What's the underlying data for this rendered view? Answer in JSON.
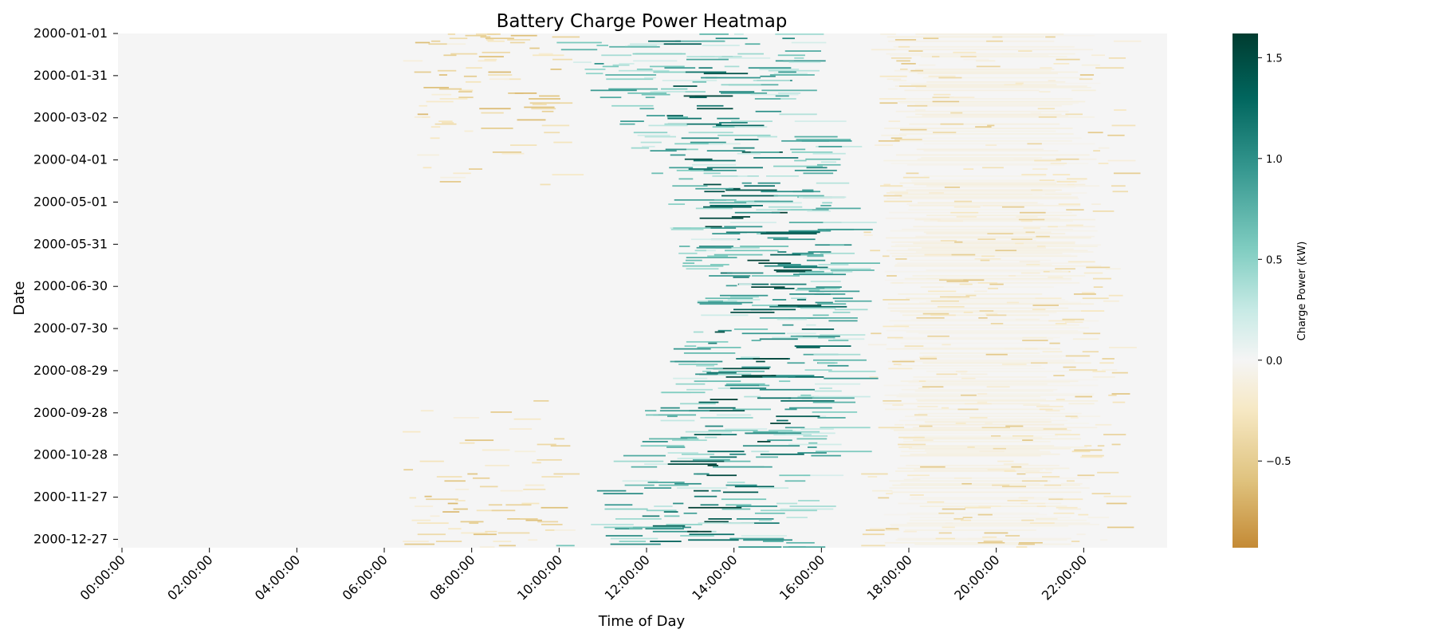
{
  "chart_data": {
    "type": "heatmap",
    "title": "Battery Charge Power Heatmap",
    "xlabel": "Time of Day",
    "ylabel": "Date",
    "x_ticks": [
      "00:00:00",
      "02:00:00",
      "04:00:00",
      "06:00:00",
      "08:00:00",
      "10:00:00",
      "12:00:00",
      "14:00:00",
      "16:00:00",
      "18:00:00",
      "20:00:00",
      "22:00:00"
    ],
    "x_range_hours": [
      0,
      24
    ],
    "y_ticks": [
      "2000-01-01",
      "2000-01-31",
      "2000-03-02",
      "2000-04-01",
      "2000-05-01",
      "2000-05-31",
      "2000-06-30",
      "2000-07-30",
      "2000-08-29",
      "2000-09-28",
      "2000-10-28",
      "2000-11-27",
      "2000-12-27"
    ],
    "n_days": 366,
    "colorbar": {
      "label": "Charge Power (kW)",
      "min": -0.93,
      "max": 1.62,
      "ticks": [
        -0.5,
        0.0,
        0.5,
        1.0,
        1.5
      ],
      "tick_labels": [
        "−0.5",
        "0.0",
        "0.5",
        "1.0",
        "1.5"
      ],
      "colors": [
        "#c48a35",
        "#dfc27d",
        "#f6e8c3",
        "#f5f5f5",
        "#c7eae5",
        "#80cdc1",
        "#35978f",
        "#01665e",
        "#003c30"
      ],
      "color_stops": [
        -0.93,
        -0.6,
        -0.25,
        0.0,
        0.25,
        0.55,
        0.95,
        1.3,
        1.62
      ]
    },
    "pattern": {
      "charging_window_hours": [
        9,
        17
      ],
      "peak_charge_hours_winter": [
        13,
        14
      ],
      "peak_charge_hours_summer": [
        14,
        16
      ],
      "discharge_evening_hours": [
        17,
        23
      ],
      "discharge_morning_hours": [
        6,
        9
      ],
      "typical_peak_charge_kw": 1.6,
      "typical_discharge_kw": -0.5
    }
  }
}
